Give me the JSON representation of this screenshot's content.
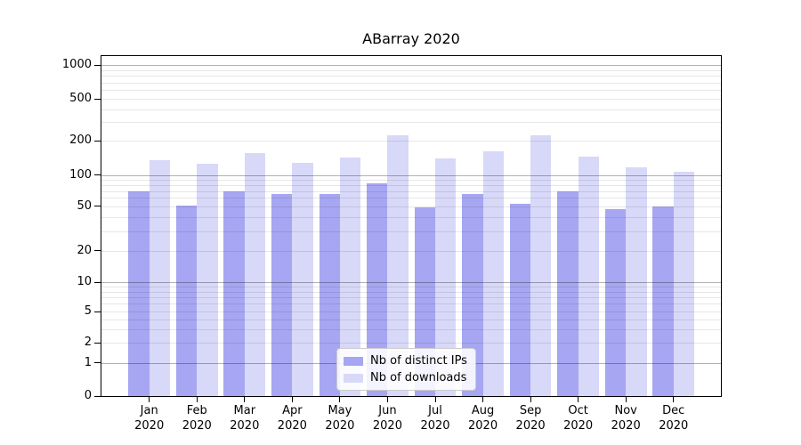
{
  "chart_data": {
    "type": "bar",
    "title": "ABarray 2020",
    "categories": [
      "Jan 2020",
      "Feb 2020",
      "Mar 2020",
      "Apr 2020",
      "May 2020",
      "Jun 2020",
      "Jul 2020",
      "Aug 2020",
      "Sep 2020",
      "Oct 2020",
      "Nov 2020",
      "Dec 2020"
    ],
    "month_labels": [
      "Jan",
      "Feb",
      "Mar",
      "Apr",
      "May",
      "Jun",
      "Jul",
      "Aug",
      "Sep",
      "Oct",
      "Nov",
      "Dec"
    ],
    "year_label": "2020",
    "series": [
      {
        "name": "Nb of distinct IPs",
        "color": "#a6a6f2",
        "values": [
          70,
          51,
          70,
          65,
          66,
          84,
          49,
          65,
          53,
          69,
          47,
          50
        ]
      },
      {
        "name": "Nb of downloads",
        "color": "#d8d8f8",
        "values": [
          135,
          126,
          155,
          129,
          143,
          225,
          139,
          163,
          226,
          146,
          118,
          107
        ]
      }
    ],
    "y_ticks": [
      0,
      1,
      2,
      5,
      10,
      20,
      50,
      100,
      200,
      500,
      1000
    ],
    "ylim": [
      0,
      1000
    ],
    "yscale": "log-like (0,1,2,5,10,20,50,100,200,500,1000)",
    "xlabel": "",
    "ylabel": "",
    "grid": "horizontal, light minors at 2-9 per decade, gray majors at 1/10/100/1000",
    "legend_position": "bottom-center"
  },
  "colors": {
    "bar_distinct_ips": "#a6a6f2",
    "bar_downloads": "#d8d8f8",
    "grid_major": "rgba(0,0,0,0.30)",
    "grid_minor": "rgba(0,0,0,0.095)",
    "axis": "#000000",
    "legend_border": "#cccccc",
    "background": "#ffffff"
  }
}
